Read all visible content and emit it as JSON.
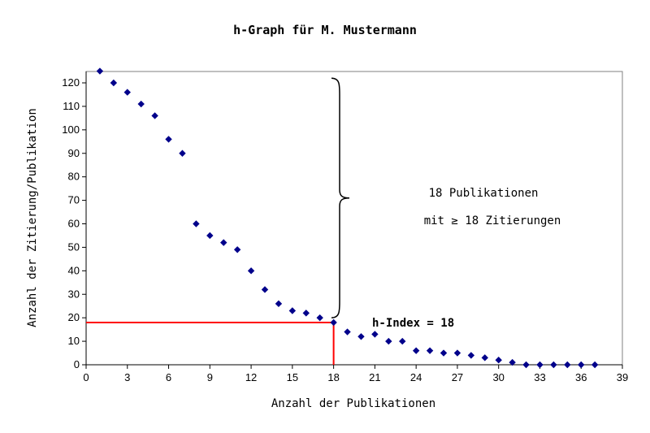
{
  "chart_data": {
    "type": "scatter",
    "title": "h-Graph für M. Mustermann",
    "xlabel": "Anzahl der Publikationen",
    "ylabel": "Anzahl der Zitierung/Publikation",
    "xlim": [
      0,
      39
    ],
    "ylim": [
      0,
      125
    ],
    "x_ticks": [
      0,
      3,
      6,
      9,
      12,
      15,
      18,
      21,
      24,
      27,
      30,
      33,
      36,
      39
    ],
    "y_ticks": [
      0,
      10,
      20,
      30,
      40,
      50,
      60,
      70,
      80,
      90,
      100,
      110,
      120
    ],
    "grid": false,
    "marker_color": "#00008B",
    "series": [
      {
        "x": [
          1,
          2,
          3,
          4,
          5,
          6,
          7,
          8,
          9,
          10,
          11,
          12,
          13,
          14,
          15,
          16,
          17,
          18,
          19,
          20,
          21,
          22,
          23,
          24,
          25,
          26,
          27,
          28,
          29,
          30,
          31,
          32,
          33,
          34,
          35,
          36,
          37
        ],
        "y": [
          125,
          120,
          116,
          111,
          106,
          96,
          90,
          60,
          55,
          52,
          49,
          40,
          32,
          26,
          23,
          22,
          20,
          18,
          14,
          12,
          13,
          10,
          10,
          6,
          6,
          5,
          5,
          4,
          3,
          2,
          1,
          0,
          0,
          0,
          0,
          0,
          0
        ]
      }
    ],
    "h_index": {
      "value": 18,
      "line_color": "#FF0000",
      "label": "h-Index = 18"
    },
    "brace_annotation": {
      "y_from": 20,
      "y_to": 122,
      "line1": "18 Publikationen",
      "line2": "mit ≥ 18 Zitierungen"
    }
  }
}
